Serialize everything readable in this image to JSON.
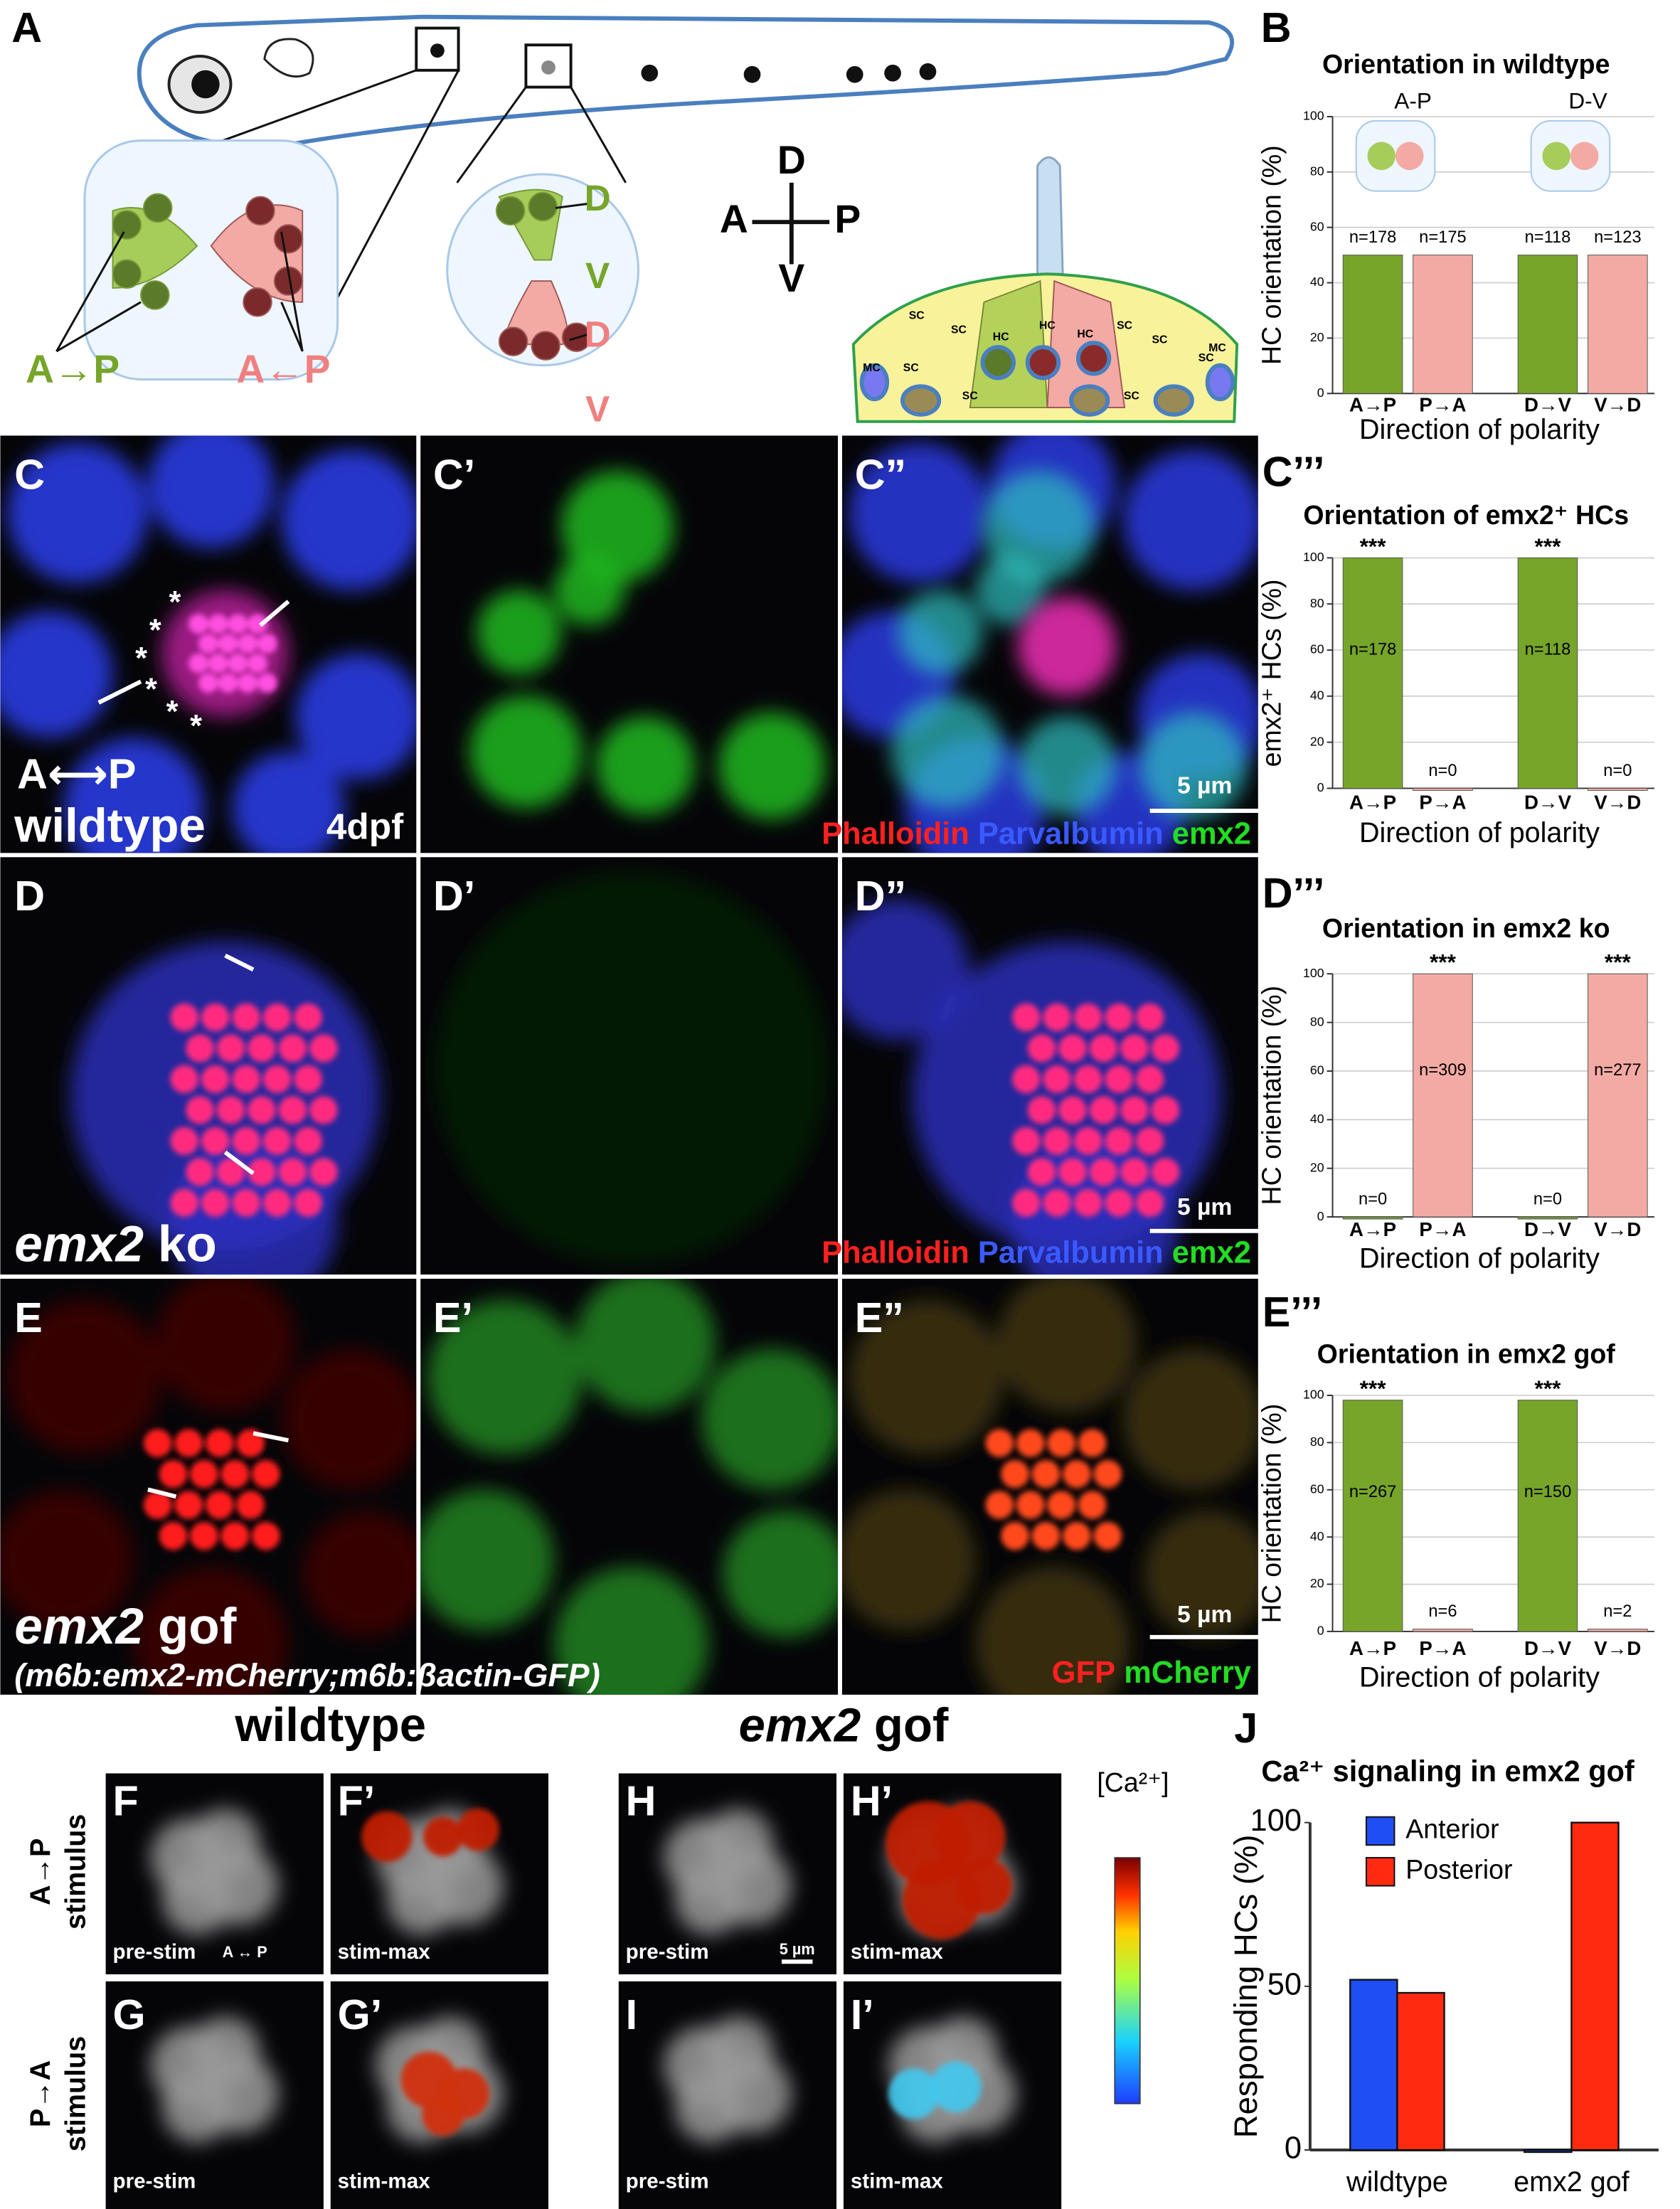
{
  "figure": {
    "panel_labels": [
      "A",
      "B",
      "C",
      "C’",
      "C”",
      "C’’’",
      "D",
      "D’",
      "D”",
      "D’’’",
      "E",
      "E’",
      "E”",
      "E’’’",
      "F",
      "F’",
      "G",
      "G’",
      "H",
      "H’",
      "I",
      "I’",
      "J"
    ],
    "diagram": {
      "ap_green": "A→P",
      "ap_pink": "A←P",
      "dv_green": [
        "D",
        "V"
      ],
      "dv_pink": [
        "D",
        "V"
      ],
      "compass": [
        "D",
        "A",
        "P",
        "V"
      ],
      "cross_section": [
        "MC",
        "SC",
        "SC",
        "SC",
        "HC",
        "HC",
        "HC",
        "SC",
        "SC",
        "SC",
        "SC",
        "SC",
        "MC"
      ]
    },
    "panel_c": {
      "axis": "A⟷P",
      "genotype": "wildtype",
      "age": "4dpf",
      "asterisks": [
        "*",
        "*",
        "*",
        "*",
        "*",
        "*"
      ]
    },
    "scale_bars": [
      "5 µm",
      "5 µm",
      "5 µm",
      "5 µm"
    ],
    "stains_c": [
      "Phalloidin",
      "Parvalbumin",
      "emx2"
    ],
    "stains_d": [
      "Phalloidin",
      "Parvalbumin",
      "emx2"
    ],
    "panel_d": {
      "genotype": [
        "emx2",
        " ko"
      ]
    },
    "panel_e": {
      "genotype": [
        "emx2",
        " gof"
      ],
      "construct": "(m6b:emx2-mCherry;m6b:βactin-GFP)",
      "stains": [
        "GFP",
        "mCherry"
      ]
    },
    "calcium": {
      "headings": [
        "wildtype",
        [
          "emx2",
          " gof"
        ]
      ],
      "stimulus": [
        [
          "A→P",
          "stimulus"
        ],
        [
          "P→A",
          "stimulus"
        ]
      ],
      "frame_labels": [
        "pre-stim",
        "stim-max",
        "pre-stim",
        "stim-max",
        "pre-stim",
        "stim-max",
        "pre-stim",
        "stim-max"
      ],
      "f_axis": "A ↔ P",
      "colorbar": "[Ca²⁺]"
    }
  },
  "chart_data": [
    {
      "type": "bar",
      "title": "Orientation in wildtype",
      "ylabel": "HC orientation (%)",
      "xlabel": "Direction of polarity",
      "categories": [
        "A→P",
        "P→A",
        "D→V",
        "V→D"
      ],
      "values": [
        50,
        50,
        50,
        50
      ],
      "colors": [
        "#76a52a",
        "#f4aaa4",
        "#76a52a",
        "#f4aaa4"
      ],
      "n_labels": [
        "n=178",
        "n=175",
        "n=118",
        "n=123"
      ],
      "group_labels": [
        "A-P",
        "D-V"
      ],
      "ylim": [
        0,
        100
      ],
      "yticks": [
        0,
        20,
        40,
        60,
        80,
        100
      ],
      "grid": true
    },
    {
      "type": "bar",
      "title": "Orientation of emx2⁺ HCs",
      "ylabel": "emx2⁺ HCs (%)",
      "xlabel": "Direction of polarity",
      "categories": [
        "A→P",
        "P→A",
        "D→V",
        "V→D"
      ],
      "values": [
        100,
        0,
        100,
        0
      ],
      "colors": [
        "#76a52a",
        "#f4aaa4",
        "#76a52a",
        "#f4aaa4"
      ],
      "n_labels": [
        "n=178",
        "n=0",
        "n=118",
        "n=0"
      ],
      "significance": [
        "***",
        null,
        "***",
        null
      ],
      "ylim": [
        0,
        100
      ],
      "yticks": [
        0,
        20,
        40,
        60,
        80,
        100
      ],
      "grid": true
    },
    {
      "type": "bar",
      "title": "Orientation in emx2 ko",
      "ylabel": "HC orientation (%)",
      "xlabel": "Direction of polarity",
      "categories": [
        "A→P",
        "P→A",
        "D→V",
        "V→D"
      ],
      "values": [
        0,
        100,
        0,
        100
      ],
      "colors": [
        "#76a52a",
        "#f4aaa4",
        "#76a52a",
        "#f4aaa4"
      ],
      "n_labels": [
        "n=0",
        "n=309",
        "n=0",
        "n=277"
      ],
      "significance": [
        null,
        "***",
        null,
        "***"
      ],
      "ylim": [
        0,
        100
      ],
      "yticks": [
        0,
        20,
        40,
        60,
        80,
        100
      ],
      "grid": true
    },
    {
      "type": "bar",
      "title": "Orientation in emx2 gof",
      "ylabel": "HC orientation (%)",
      "xlabel": "Direction of polarity",
      "categories": [
        "A→P",
        "P→A",
        "D→V",
        "V→D"
      ],
      "values": [
        98,
        1,
        98,
        1
      ],
      "colors": [
        "#76a52a",
        "#f4aaa4",
        "#76a52a",
        "#f4aaa4"
      ],
      "n_labels": [
        "n=267",
        "n=6",
        "n=150",
        "n=2"
      ],
      "significance": [
        "***",
        null,
        "***",
        null
      ],
      "ylim": [
        0,
        100
      ],
      "yticks": [
        0,
        20,
        40,
        60,
        80,
        100
      ],
      "grid": true
    },
    {
      "type": "grouped_bar",
      "title": "Ca²⁺ signaling in emx2 gof",
      "ylabel": "Responding HCs (%)",
      "categories": [
        "wildtype",
        "emx2 gof"
      ],
      "series": [
        {
          "name": "Anterior",
          "color": "#1f4ef5",
          "values": [
            52,
            0
          ]
        },
        {
          "name": "Posterior",
          "color": "#ff2a10",
          "values": [
            48,
            100
          ]
        }
      ],
      "ylim": [
        0,
        100
      ],
      "yticks": [
        0,
        50,
        100
      ],
      "grid": false,
      "legend": "top-left"
    }
  ]
}
